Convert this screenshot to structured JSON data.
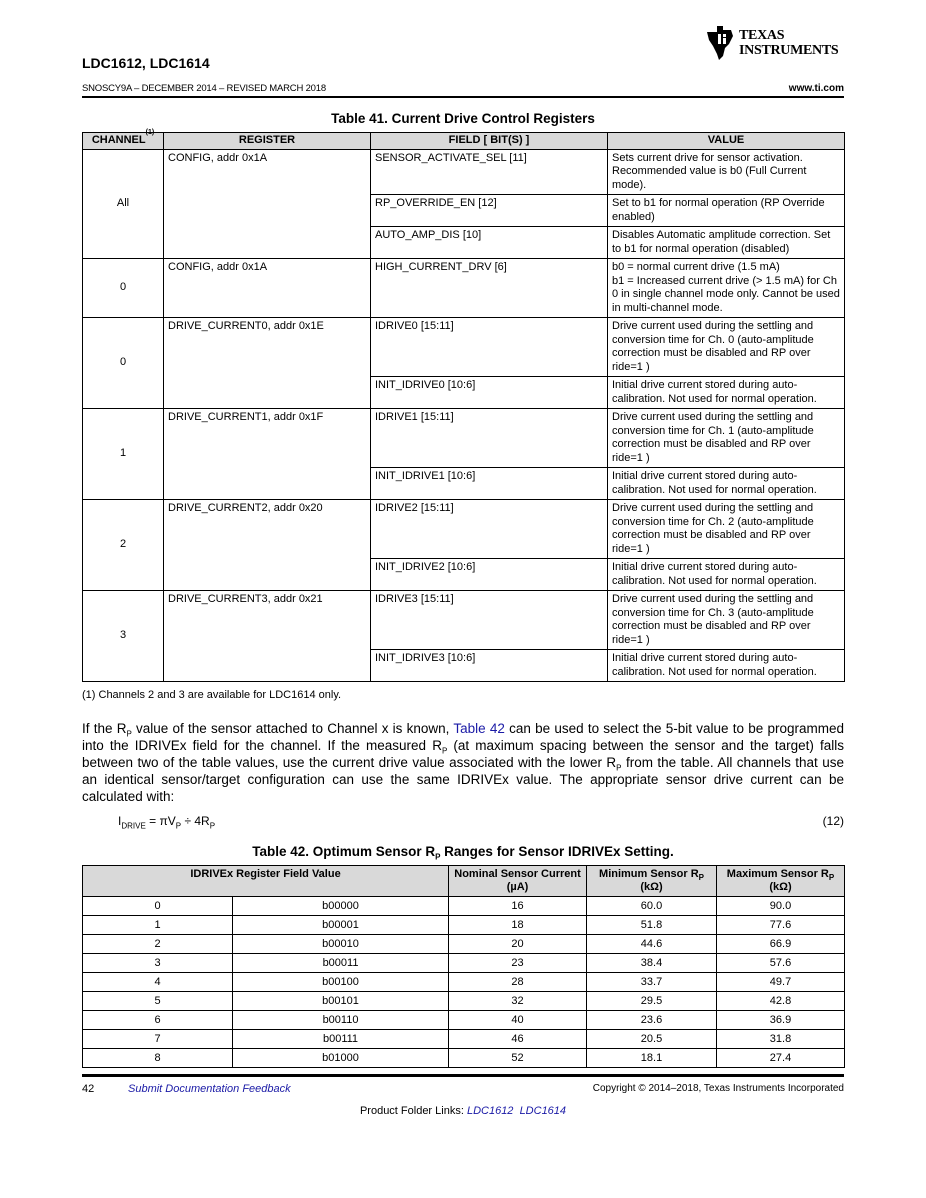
{
  "header": {
    "doc_title": "LDC1612, LDC1614",
    "doc_id": "SNOSCY9A – DECEMBER 2014 – REVISED MARCH 2018",
    "website": "www.ti.com",
    "logo_text_1": "TEXAS",
    "logo_text_2": "INSTRUMENTS"
  },
  "table41": {
    "caption": "Table 41. Current Drive Control Registers",
    "headers": [
      "CHANNEL",
      "REGISTER",
      "FIELD [ BIT(S) ]",
      "VALUE"
    ],
    "channel_footnote_mark": "(1)",
    "groups": [
      {
        "channel": "All",
        "register": "CONFIG, addr 0x1A",
        "rows": [
          {
            "field": "SENSOR_ACTIVATE_SEL [11]",
            "value": "Sets current drive for sensor activation. Recommended value is b0 (Full Current mode)."
          },
          {
            "field": "RP_OVERRIDE_EN [12]",
            "value": "Set to b1 for normal operation (RP Override enabled)"
          },
          {
            "field": "AUTO_AMP_DIS [10]",
            "value": "Disables Automatic amplitude correction. Set to b1 for normal operation (disabled)"
          }
        ]
      },
      {
        "channel": "0",
        "register": "CONFIG, addr 0x1A",
        "rows": [
          {
            "field": "HIGH_CURRENT_DRV [6]",
            "value": "b0 = normal current drive (1.5 mA)\nb1 = Increased current drive (> 1.5 mA) for Ch 0 in single channel mode only. Cannot be used in multi-channel mode."
          }
        ]
      },
      {
        "channel": "0",
        "register": "DRIVE_CURRENT0, addr 0x1E",
        "rows": [
          {
            "field": "IDRIVE0 [15:11]",
            "value": "Drive current used during the settling and conversion time for Ch. 0 (auto-amplitude correction must be disabled and RP over ride=1 )"
          },
          {
            "field": "INIT_IDRIVE0 [10:6]",
            "value": "Initial drive current stored during auto-calibration. Not used for normal operation."
          }
        ]
      },
      {
        "channel": "1",
        "register": "DRIVE_CURRENT1, addr 0x1F",
        "rows": [
          {
            "field": "IDRIVE1 [15:11]",
            "value": "Drive current used during the settling and conversion time for Ch. 1 (auto-amplitude correction must be disabled and RP over ride=1 )"
          },
          {
            "field": "INIT_IDRIVE1 [10:6]",
            "value": "Initial drive current stored during auto-calibration. Not used for normal operation."
          }
        ]
      },
      {
        "channel": "2",
        "register": "DRIVE_CURRENT2, addr 0x20",
        "rows": [
          {
            "field": "IDRIVE2 [15:11]",
            "value": "Drive current used during the settling and conversion time for Ch. 2 (auto-amplitude correction must be disabled and RP over ride=1 )"
          },
          {
            "field": "INIT_IDRIVE2 [10:6]",
            "value": "Initial drive current stored during auto-calibration. Not used for normal operation."
          }
        ]
      },
      {
        "channel": "3",
        "register": "DRIVE_CURRENT3, addr 0x21",
        "rows": [
          {
            "field": "IDRIVE3 [15:11]",
            "value": "Drive current used during the settling and conversion time for Ch. 3 (auto-amplitude correction must be disabled and RP over ride=1 )"
          },
          {
            "field": "INIT_IDRIVE3 [10:6]",
            "value": "Initial drive current stored during auto-calibration. Not used for normal operation."
          }
        ]
      }
    ],
    "footnote": "(1)   Channels 2 and 3 are available for LDC1614 only."
  },
  "paragraph": {
    "p1": "If the R",
    "sub_p": "P",
    "p2": " value of the sensor attached to Channel x is known, ",
    "link": "Table 42",
    "p3": " can be used to select the 5-bit value to be programmed into the IDRIVEx field for the channel. If the measured R",
    "p4": " (at maximum spacing between the sensor and the target) falls between two of the table values, use the current drive value associated with the lower R",
    "p5": " from the table. All channels that use an identical sensor/target configuration can use the same IDRIVEx value. The appropriate sensor drive current can be calculated with:"
  },
  "equation": {
    "i": "I",
    "sub_drive": "DRIVE",
    "mid": " = πV",
    "sub_p": "P",
    "end": " ÷ 4R",
    "number": "(12)"
  },
  "table42": {
    "caption_1": "Table 42. Optimum Sensor R",
    "caption_sub": "P",
    "caption_2": " Ranges for Sensor IDRIVEx Setting.",
    "headers": {
      "field": "IDRIVEx Register Field Value",
      "nominal": "Nominal Sensor Current (µA)",
      "min": "Minimum Sensor R",
      "max": "Maximum Sensor R",
      "sub": "P",
      "unit": "(kΩ)"
    },
    "rows": [
      [
        "0",
        "b00000",
        "16",
        "60.0",
        "90.0"
      ],
      [
        "1",
        "b00001",
        "18",
        "51.8",
        "77.6"
      ],
      [
        "2",
        "b00010",
        "20",
        "44.6",
        "66.9"
      ],
      [
        "3",
        "b00011",
        "23",
        "38.4",
        "57.6"
      ],
      [
        "4",
        "b00100",
        "28",
        "33.7",
        "49.7"
      ],
      [
        "5",
        "b00101",
        "32",
        "29.5",
        "42.8"
      ],
      [
        "6",
        "b00110",
        "40",
        "23.6",
        "36.9"
      ],
      [
        "7",
        "b00111",
        "46",
        "20.5",
        "31.8"
      ],
      [
        "8",
        "b01000",
        "52",
        "18.1",
        "27.4"
      ]
    ]
  },
  "footer": {
    "page_number": "42",
    "feedback_link": "Submit Documentation Feedback",
    "copyright": "Copyright © 2014–2018, Texas Instruments Incorporated",
    "product_links_label": "Product Folder Links: ",
    "product_link_1": "LDC1612",
    "product_link_2": "LDC1614"
  },
  "colors": {
    "link": "#1a1aa6",
    "table_header_bg": "#d9d9d9"
  }
}
